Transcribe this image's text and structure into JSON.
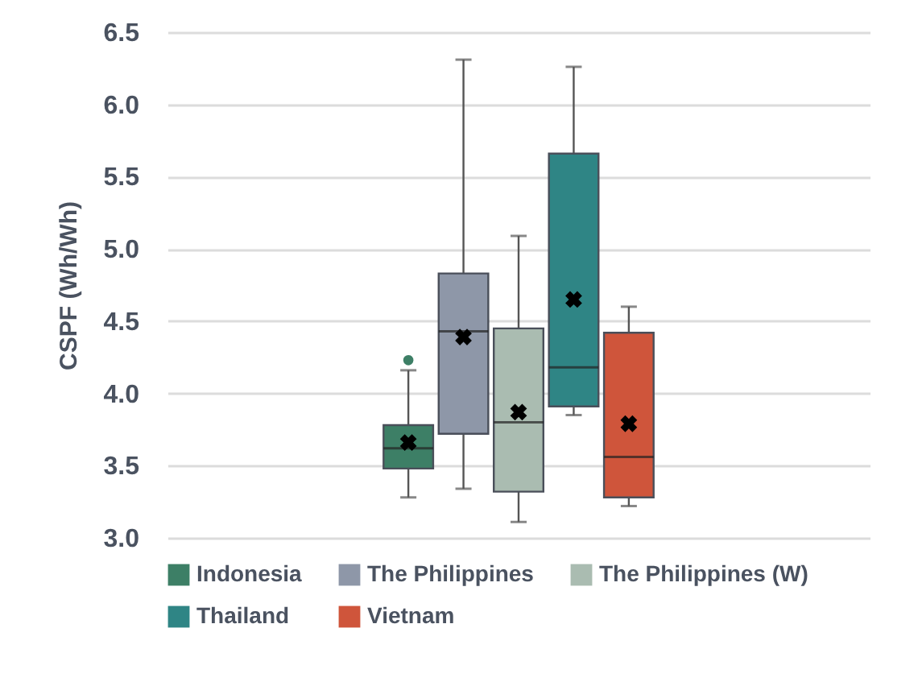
{
  "chart_data": {
    "type": "box",
    "ylabel": "CSPF (Wh/Wh)",
    "categories": [
      null
    ],
    "ylim": [
      3.0,
      6.5
    ],
    "yticks": [
      {
        "value": 3,
        "label": "3.0"
      },
      3.5,
      {
        "value": 4,
        "label": "4.0"
      },
      4.5,
      {
        "value": 5,
        "label": "5.0"
      },
      5.5,
      {
        "value": 6,
        "label": "6.0"
      },
      6.5
    ],
    "grid": "y",
    "legend": "bottom",
    "tick_labels": "y",
    "series": [
      {
        "name": "Indonesia",
        "color": "#3d7f66",
        "boxes": [
          {
            "low": 3.28,
            "q1": 3.48,
            "median": 3.62,
            "q3": 3.78,
            "high": 4.16,
            "mean": 3.66,
            "outliers": [
              4.23
            ]
          }
        ]
      },
      {
        "name": "The Philippines",
        "color": "#8e97a8",
        "boxes": [
          {
            "low": 3.34,
            "q1": 3.72,
            "median": 4.43,
            "q3": 4.83,
            "high": 6.31,
            "mean": 4.39
          }
        ]
      },
      {
        "name": "The Philippines (W)",
        "color": "#aabcb1",
        "boxes": [
          {
            "low": 3.11,
            "q1": 3.32,
            "median": 3.8,
            "q3": 4.45,
            "high": 5.09,
            "mean": 3.87
          }
        ]
      },
      {
        "name": "Thailand",
        "color": "#2f8585",
        "boxes": [
          {
            "low": 3.85,
            "q1": 3.91,
            "median": 4.18,
            "q3": 5.66,
            "high": 6.26,
            "mean": 4.65
          }
        ]
      },
      {
        "name": "Vietnam",
        "color": "#cf553b",
        "boxes": [
          {
            "low": 3.22,
            "q1": 3.28,
            "median": 3.56,
            "q3": 4.42,
            "high": 4.6,
            "mean": 3.79
          }
        ]
      }
    ]
  }
}
